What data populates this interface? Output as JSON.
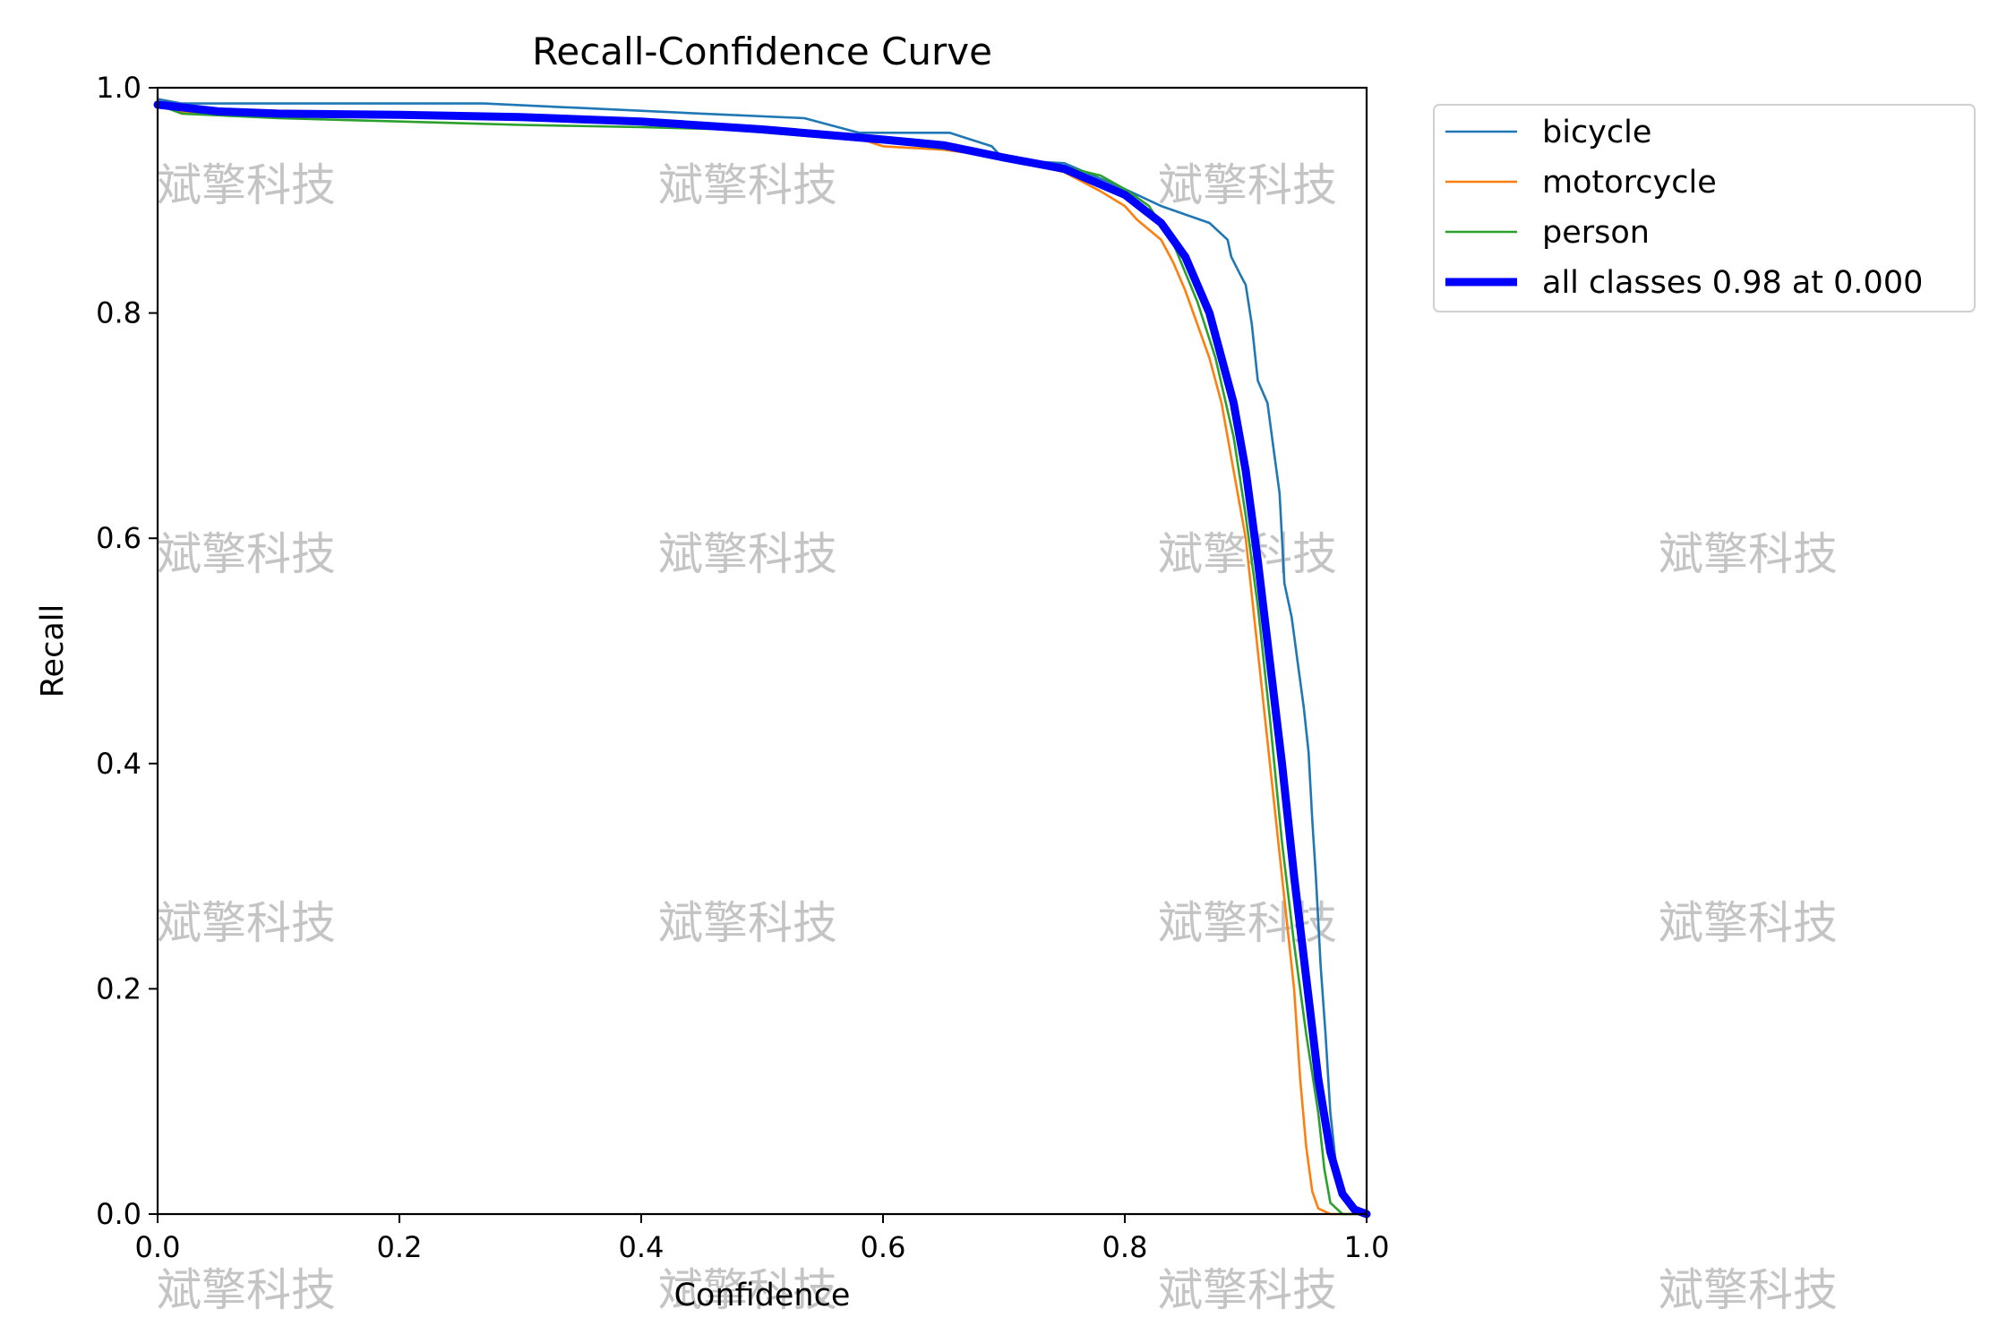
{
  "chart_data": {
    "type": "line",
    "title": "Recall-Confidence Curve",
    "xlabel": "Confidence",
    "ylabel": "Recall",
    "xlim": [
      0.0,
      1.0
    ],
    "ylim": [
      0.0,
      1.0
    ],
    "xticks": [
      "0.0",
      "0.2",
      "0.4",
      "0.6",
      "0.8",
      "1.0"
    ],
    "yticks": [
      "0.0",
      "0.2",
      "0.4",
      "0.6",
      "0.8",
      "1.0"
    ],
    "grid": false,
    "legend_position": "outside-upper-right",
    "series": [
      {
        "name": "bicycle",
        "color": "#1f77b4",
        "points": [
          [
            0.0,
            0.99
          ],
          [
            0.02,
            0.986
          ],
          [
            0.1,
            0.986
          ],
          [
            0.27,
            0.986
          ],
          [
            0.35,
            0.982
          ],
          [
            0.45,
            0.977
          ],
          [
            0.535,
            0.973
          ],
          [
            0.58,
            0.96
          ],
          [
            0.655,
            0.96
          ],
          [
            0.69,
            0.948
          ],
          [
            0.7,
            0.936
          ],
          [
            0.75,
            0.933
          ],
          [
            0.8,
            0.91
          ],
          [
            0.83,
            0.895
          ],
          [
            0.87,
            0.88
          ],
          [
            0.885,
            0.865
          ],
          [
            0.888,
            0.85
          ],
          [
            0.895,
            0.835
          ],
          [
            0.9,
            0.825
          ],
          [
            0.905,
            0.79
          ],
          [
            0.91,
            0.74
          ],
          [
            0.918,
            0.72
          ],
          [
            0.923,
            0.68
          ],
          [
            0.928,
            0.64
          ],
          [
            0.932,
            0.56
          ],
          [
            0.938,
            0.53
          ],
          [
            0.943,
            0.49
          ],
          [
            0.948,
            0.45
          ],
          [
            0.952,
            0.41
          ],
          [
            0.955,
            0.35
          ],
          [
            0.958,
            0.3
          ],
          [
            0.962,
            0.22
          ],
          [
            0.966,
            0.16
          ],
          [
            0.97,
            0.09
          ],
          [
            0.975,
            0.04
          ],
          [
            0.98,
            0.015
          ],
          [
            0.99,
            0.003
          ],
          [
            1.0,
            0.0
          ]
        ]
      },
      {
        "name": "motorcycle",
        "color": "#ff7f0e",
        "points": [
          [
            0.0,
            0.985
          ],
          [
            0.02,
            0.978
          ],
          [
            0.1,
            0.977
          ],
          [
            0.2,
            0.975
          ],
          [
            0.3,
            0.973
          ],
          [
            0.4,
            0.97
          ],
          [
            0.5,
            0.963
          ],
          [
            0.58,
            0.955
          ],
          [
            0.6,
            0.948
          ],
          [
            0.65,
            0.945
          ],
          [
            0.7,
            0.938
          ],
          [
            0.75,
            0.925
          ],
          [
            0.78,
            0.908
          ],
          [
            0.8,
            0.895
          ],
          [
            0.81,
            0.883
          ],
          [
            0.83,
            0.865
          ],
          [
            0.84,
            0.845
          ],
          [
            0.85,
            0.82
          ],
          [
            0.86,
            0.79
          ],
          [
            0.87,
            0.76
          ],
          [
            0.88,
            0.72
          ],
          [
            0.89,
            0.66
          ],
          [
            0.9,
            0.6
          ],
          [
            0.91,
            0.5
          ],
          [
            0.92,
            0.4
          ],
          [
            0.93,
            0.3
          ],
          [
            0.94,
            0.2
          ],
          [
            0.945,
            0.12
          ],
          [
            0.95,
            0.06
          ],
          [
            0.955,
            0.02
          ],
          [
            0.96,
            0.005
          ],
          [
            0.97,
            0.0
          ],
          [
            1.0,
            0.0
          ]
        ]
      },
      {
        "name": "person",
        "color": "#2ca02c",
        "points": [
          [
            0.0,
            0.985
          ],
          [
            0.02,
            0.977
          ],
          [
            0.1,
            0.973
          ],
          [
            0.2,
            0.97
          ],
          [
            0.3,
            0.967
          ],
          [
            0.4,
            0.965
          ],
          [
            0.47,
            0.963
          ],
          [
            0.55,
            0.956
          ],
          [
            0.6,
            0.952
          ],
          [
            0.7,
            0.94
          ],
          [
            0.75,
            0.93
          ],
          [
            0.78,
            0.922
          ],
          [
            0.8,
            0.91
          ],
          [
            0.82,
            0.895
          ],
          [
            0.84,
            0.862
          ],
          [
            0.86,
            0.81
          ],
          [
            0.875,
            0.76
          ],
          [
            0.89,
            0.69
          ],
          [
            0.9,
            0.62
          ],
          [
            0.91,
            0.54
          ],
          [
            0.92,
            0.44
          ],
          [
            0.93,
            0.33
          ],
          [
            0.94,
            0.24
          ],
          [
            0.95,
            0.16
          ],
          [
            0.96,
            0.09
          ],
          [
            0.965,
            0.04
          ],
          [
            0.97,
            0.01
          ],
          [
            0.98,
            0.0
          ],
          [
            1.0,
            0.0
          ]
        ]
      },
      {
        "name": "all classes 0.98 at 0.000",
        "color": "#0000ff",
        "points": [
          [
            0.0,
            0.985
          ],
          [
            0.05,
            0.979
          ],
          [
            0.1,
            0.977
          ],
          [
            0.2,
            0.976
          ],
          [
            0.3,
            0.974
          ],
          [
            0.4,
            0.97
          ],
          [
            0.5,
            0.963
          ],
          [
            0.6,
            0.954
          ],
          [
            0.65,
            0.949
          ],
          [
            0.7,
            0.938
          ],
          [
            0.75,
            0.928
          ],
          [
            0.8,
            0.905
          ],
          [
            0.83,
            0.88
          ],
          [
            0.85,
            0.85
          ],
          [
            0.87,
            0.8
          ],
          [
            0.89,
            0.72
          ],
          [
            0.9,
            0.66
          ],
          [
            0.91,
            0.58
          ],
          [
            0.92,
            0.49
          ],
          [
            0.93,
            0.4
          ],
          [
            0.94,
            0.3
          ],
          [
            0.95,
            0.21
          ],
          [
            0.96,
            0.12
          ],
          [
            0.97,
            0.055
          ],
          [
            0.98,
            0.018
          ],
          [
            0.99,
            0.004
          ],
          [
            1.0,
            0.0
          ]
        ]
      }
    ]
  },
  "watermark": {
    "text": "斌擎科技",
    "color": "#c4c4c4"
  }
}
